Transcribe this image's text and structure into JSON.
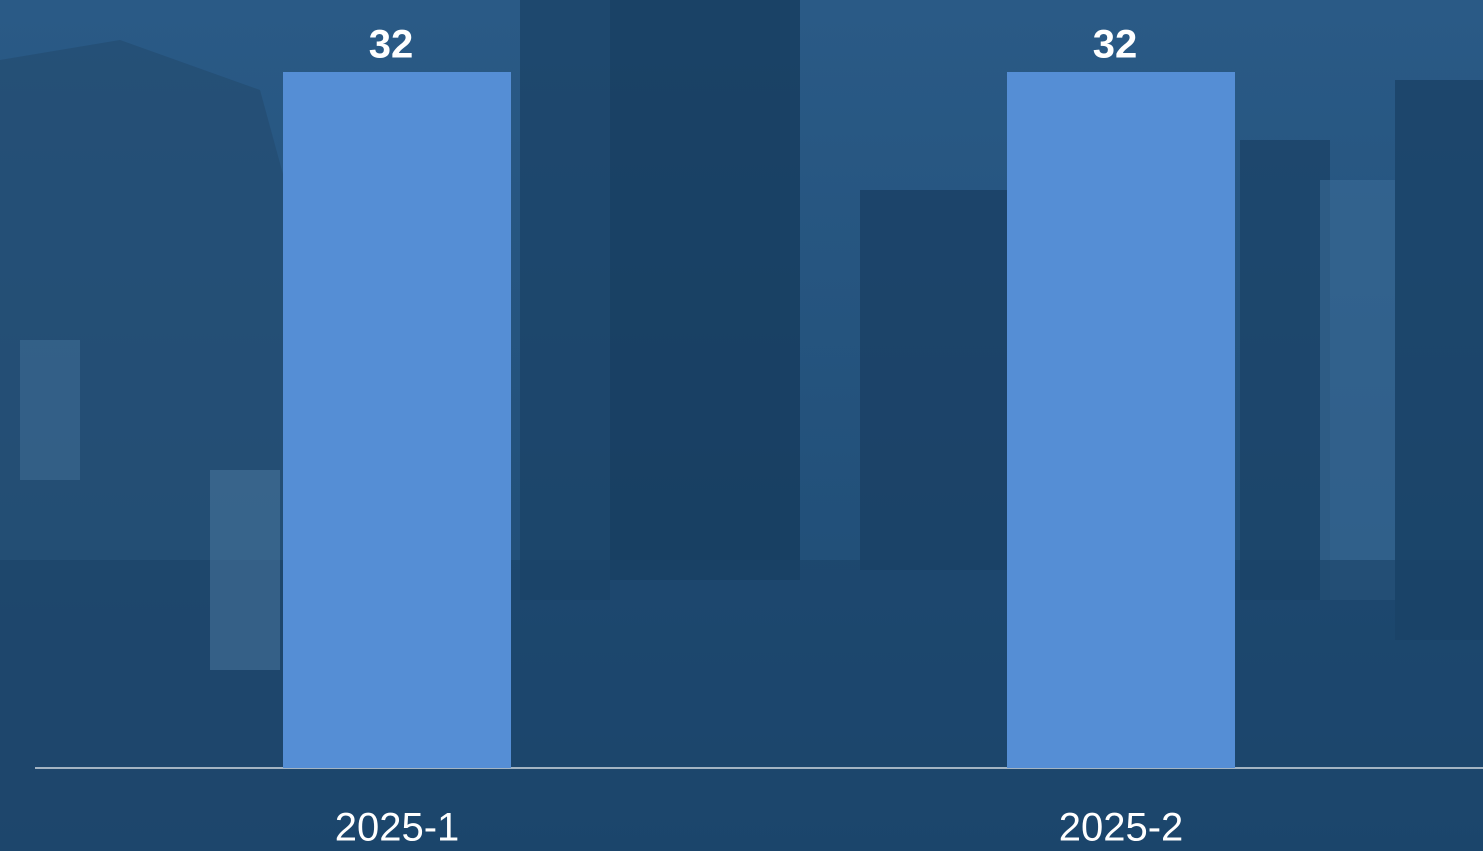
{
  "chart_data": {
    "type": "bar",
    "categories": [
      "2025-1",
      "2025-2"
    ],
    "values": [
      32,
      32
    ],
    "color": "#558ed5"
  }
}
